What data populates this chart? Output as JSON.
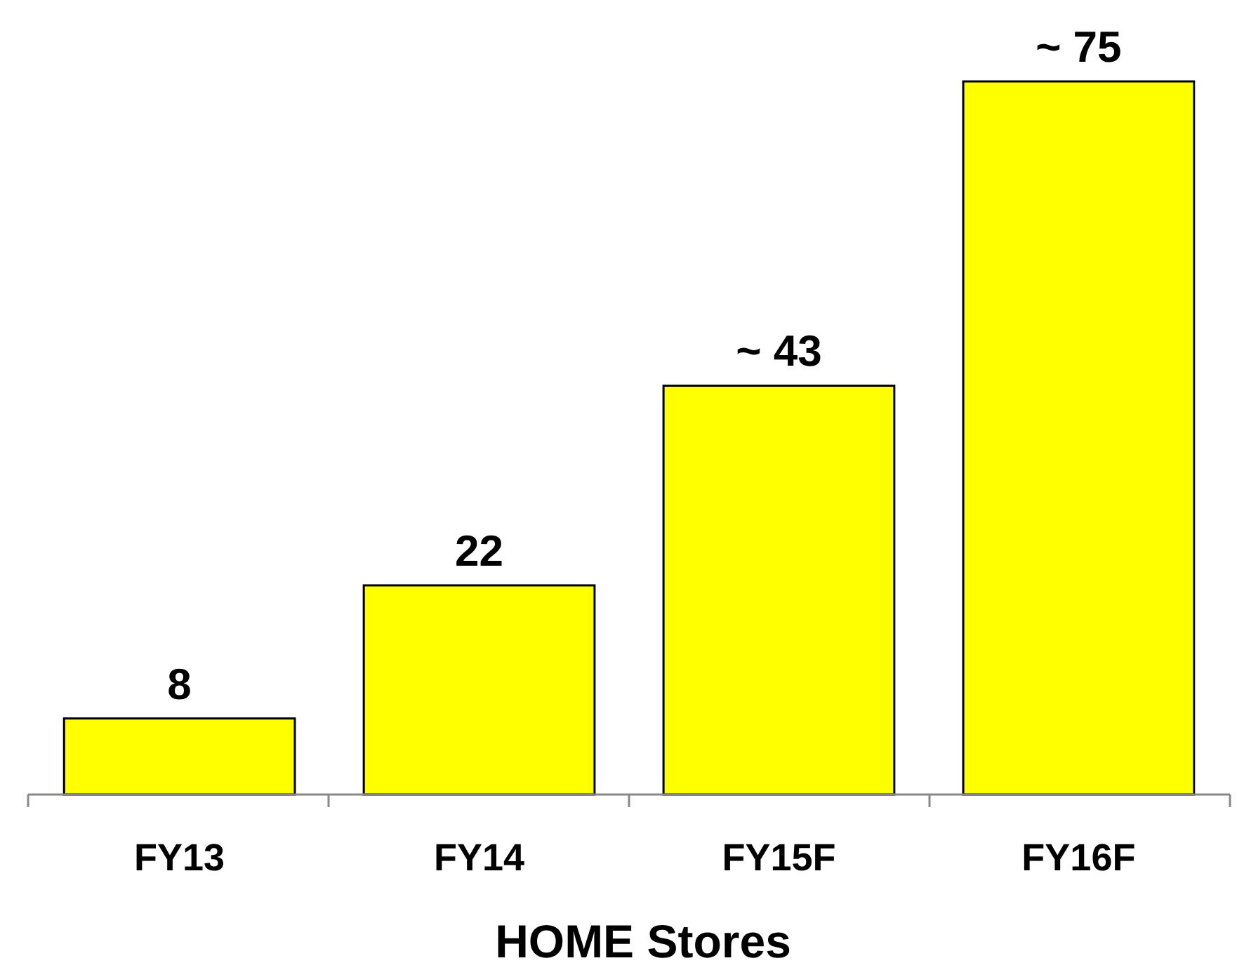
{
  "chart_data": {
    "type": "bar",
    "xlabel": "HOME Stores",
    "categories": [
      "FY13",
      "FY14",
      "FY15F",
      "FY16F"
    ],
    "values": [
      8,
      22,
      43,
      75
    ],
    "value_labels": [
      "8",
      "22",
      "~ 43",
      "~ 75"
    ],
    "color": "#ffff00"
  }
}
